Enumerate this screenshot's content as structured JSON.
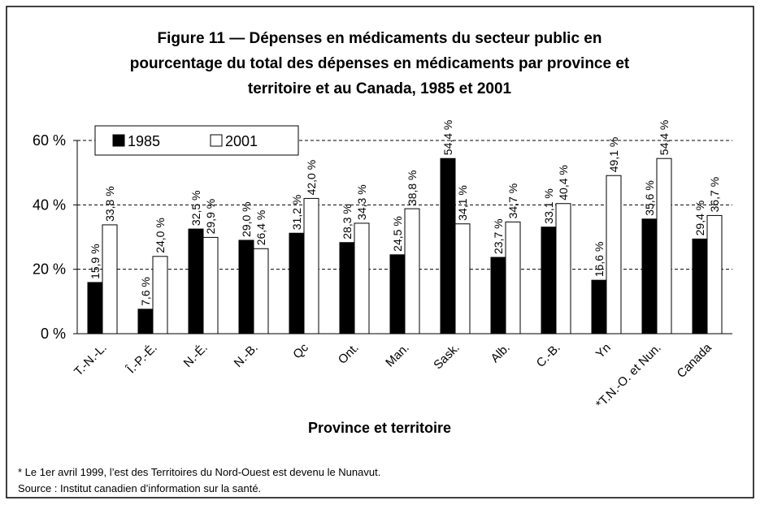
{
  "chart_data": {
    "type": "bar",
    "title": [
      "Figure 11 — Dépenses en médicaments du secteur public en",
      "pourcentage du total des dépenses en médicaments par province et",
      "territoire et au Canada, 1985 et 2001"
    ],
    "x_label": "Province et territoire",
    "notes": [
      "* Le 1er avril 1999, l’est des Territoires du Nord-Ouest est devenu le Nunavut.",
      "Source : Institut canadien d’information sur la santé."
    ],
    "categories": [
      "T.-N.-L.",
      "Î.-P.-É.",
      "N.-É.",
      "N.-B.",
      "Qc",
      "Ont.",
      "Man.",
      "Sask.",
      "Alb.",
      "C.-B.",
      "Yn",
      "*T.N.-O. et Nun.",
      "Canada"
    ],
    "series": [
      {
        "name": "1985",
        "color": "#000000",
        "values": [
          15.9,
          7.6,
          32.5,
          29.0,
          31.2,
          28.3,
          24.5,
          54.4,
          23.7,
          33.1,
          16.6,
          35.6,
          29.4
        ],
        "value_labels": [
          "15,9 %",
          "7,6 %",
          "32,5 %",
          "29,0 %",
          "31,2 %",
          "28,3 %",
          "24,5 %",
          "54,4 %",
          "23,7 %",
          "33,1 %",
          "16,6 %",
          "35,6 %",
          "29,4 %"
        ]
      },
      {
        "name": "2001",
        "color": "#ffffff",
        "values": [
          33.8,
          24.0,
          29.9,
          26.4,
          42.0,
          34.3,
          38.8,
          34.1,
          34.7,
          40.4,
          49.1,
          54.4,
          36.7
        ],
        "value_labels": [
          "33,8 %",
          "24,0 %",
          "29,9 %",
          "26,4 %",
          "42,0 %",
          "34,3 %",
          "38,8 %",
          "34,1 %",
          "34,7 %",
          "40,4 %",
          "49,1 %",
          "54,4 %",
          "36,7 %"
        ]
      }
    ],
    "ylim": [
      0,
      60
    ],
    "yticks": [
      {
        "value": 0,
        "label": "0 %"
      },
      {
        "value": 20,
        "label": "20 %"
      },
      {
        "value": 40,
        "label": "40 %"
      },
      {
        "value": 60,
        "label": "60 %"
      }
    ],
    "grid": true,
    "legend": "top-left"
  }
}
